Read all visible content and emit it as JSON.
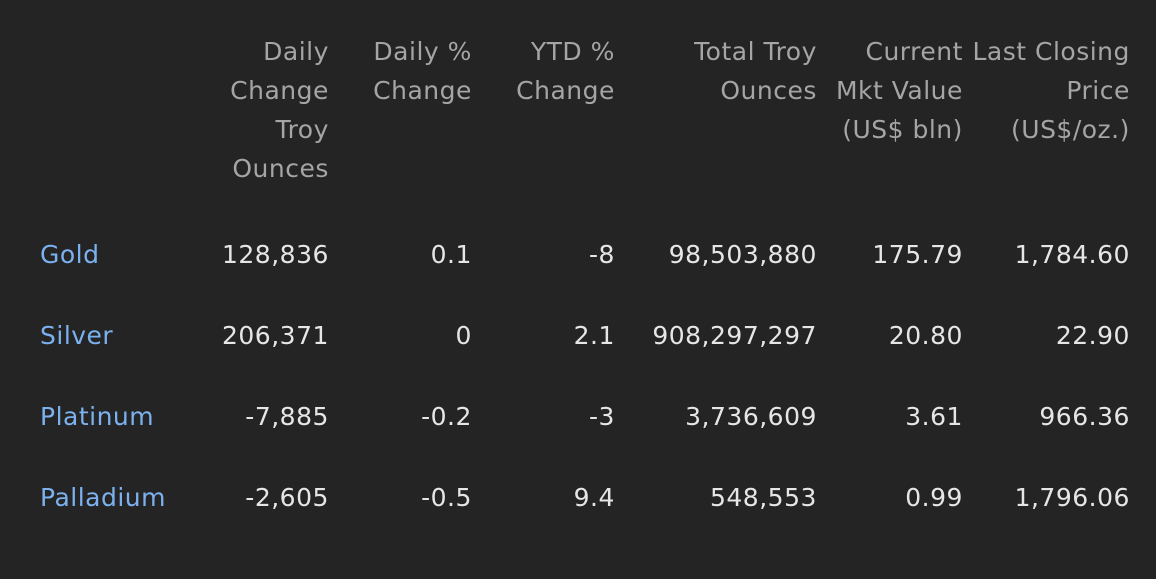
{
  "table": {
    "headers": [
      "",
      "Daily Change Troy Ounces",
      "Daily % Change",
      "YTD % Change",
      "Total Troy Ounces",
      "Current Mkt Value (US$ bln)",
      "Last Closing Price (US$/oz.)"
    ],
    "rows": [
      [
        "Gold",
        "128,836",
        "0.1",
        "-8",
        "98,503,880",
        "175.79",
        "1,784.60"
      ],
      [
        "Silver",
        "206,371",
        "0",
        "2.1",
        "908,297,297",
        "20.80",
        "22.90"
      ],
      [
        "Platinum",
        "-7,885",
        "-0.2",
        "-3",
        "3,736,609",
        "3.61",
        "966.36"
      ],
      [
        "Palladium",
        "-2,605",
        "-0.5",
        "9.4",
        "548,553",
        "0.99",
        "1,796.06"
      ]
    ]
  },
  "colors": {
    "background": "#242424",
    "header_text": "#a5a5a5",
    "cell_text": "#e6e6e6",
    "link": "#7cb1ef"
  }
}
